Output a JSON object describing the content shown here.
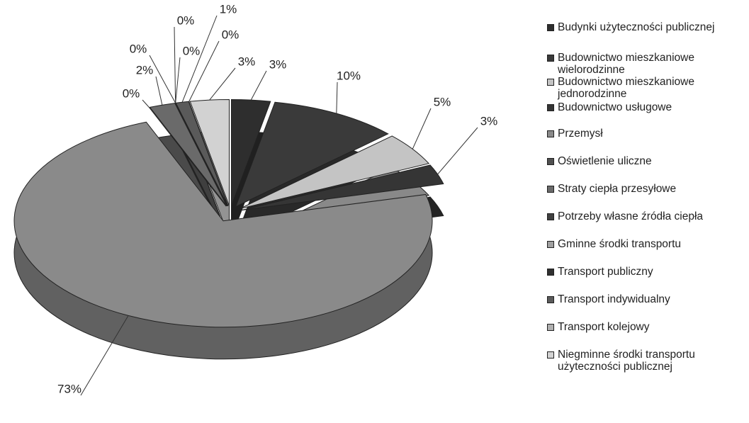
{
  "chart_data": {
    "type": "pie",
    "categories": [
      "Budynki użyteczności publicznej",
      "Budownictwo mieszkaniowe wielorodzinne",
      "Budownictwo mieszkaniowe jednorodzinne",
      "Budownictwo usługowe",
      "Przemysł",
      "Oświetlenie uliczne",
      "Straty ciepła przesyłowe",
      "Potrzeby własne źródła ciepła",
      "Gminne środki transportu",
      "Transport publiczny",
      "Transport indywidualny",
      "Transport kolejowy",
      "Niegminne środki transportu użyteczności publicznej"
    ],
    "values": [
      3,
      10,
      5,
      3,
      73,
      0,
      2,
      0,
      0,
      0,
      1,
      0,
      3
    ],
    "value_labels": [
      "3%",
      "10%",
      "5%",
      "3%",
      "73%",
      "0%",
      "2%",
      "0%",
      "0%",
      "0%",
      "1%",
      "0%",
      "3%"
    ],
    "colors": [
      "#2e2e2e",
      "#3a3a3a",
      "#c4c4c4",
      "#353535",
      "#8a8a8a",
      "#505050",
      "#6a6a6a",
      "#404040",
      "#a0a0a0",
      "#303030",
      "#5a5a5a",
      "#b0b0b0",
      "#d2d2d2"
    ]
  }
}
